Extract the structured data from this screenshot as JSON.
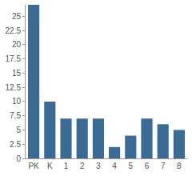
{
  "chart_data": {
    "type": "bar",
    "categories": [
      "PK",
      "K",
      "1",
      "2",
      "3",
      "4",
      "5",
      "6",
      "7",
      "8"
    ],
    "values": [
      27,
      10,
      7,
      7,
      7,
      2,
      4,
      7,
      6,
      5
    ],
    "color": "#3b6a94",
    "ylim": [
      0,
      27
    ],
    "yticks": [
      0,
      2.5,
      5,
      7.5,
      10,
      12.5,
      15,
      17.5,
      20,
      22.5,
      25
    ],
    "grid": false
  }
}
